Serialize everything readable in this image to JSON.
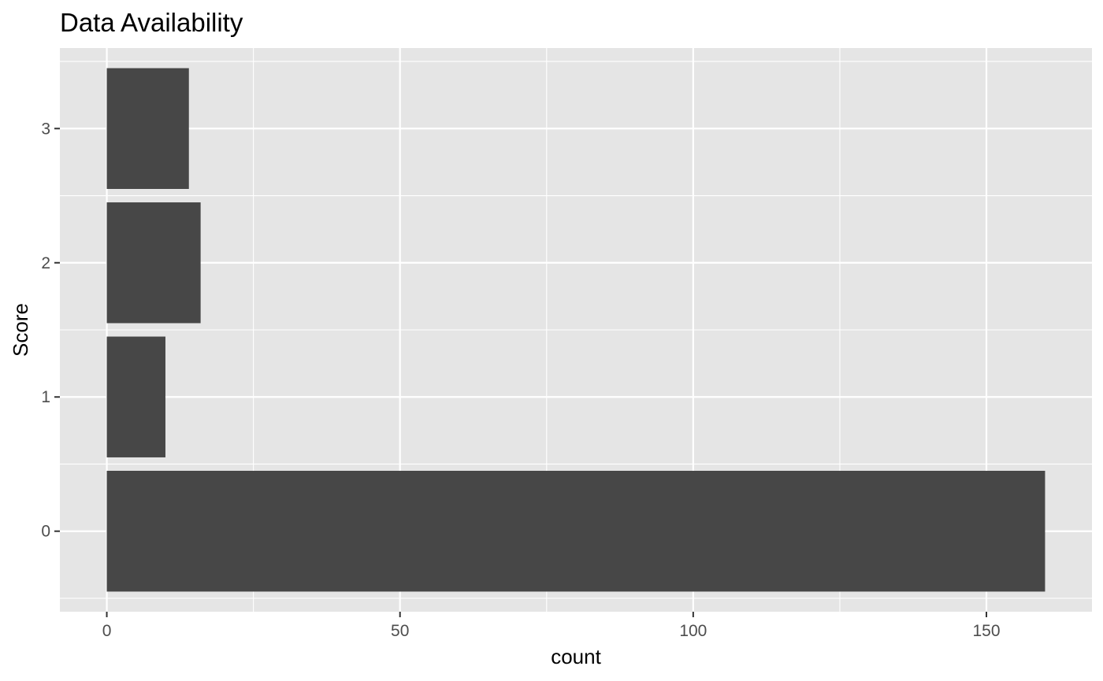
{
  "chart_data": {
    "type": "bar",
    "orientation": "horizontal",
    "title": "Data Availability",
    "xlabel": "count",
    "ylabel": "Score",
    "categories": [
      "0",
      "1",
      "2",
      "3"
    ],
    "values": [
      160,
      10,
      16,
      14
    ],
    "xlim": [
      -8,
      168
    ],
    "x_ticks": [
      0,
      50,
      100,
      150
    ],
    "grid": true,
    "legend": "none",
    "colors": {
      "bar": "#474747",
      "panel": "#e5e5e5",
      "grid": "#ffffff",
      "tick_label": "#4d4d4d",
      "tick_mark": "#333333"
    }
  }
}
